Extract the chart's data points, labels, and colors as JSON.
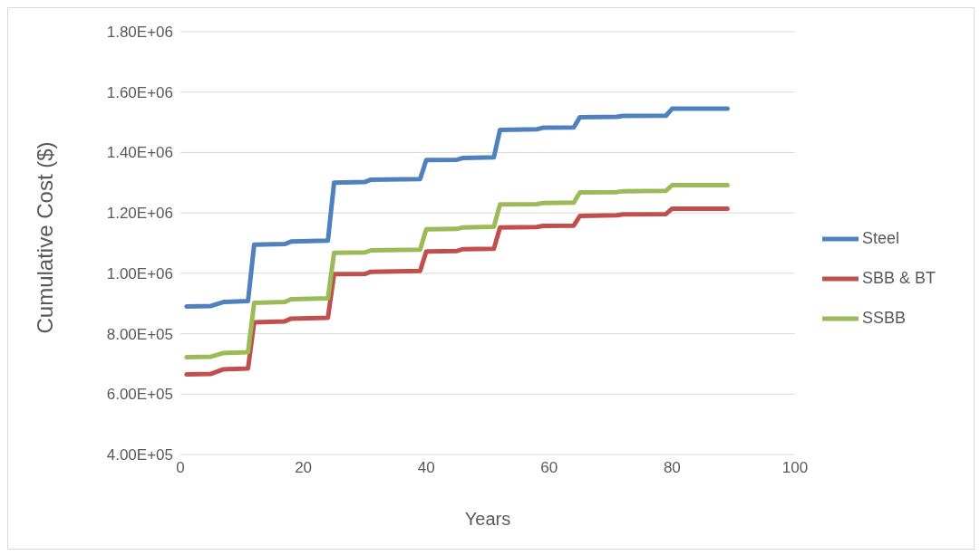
{
  "chart_data": {
    "type": "line",
    "xlabel": "Years",
    "ylabel": "Cumulative Cost ($)",
    "x": [
      1,
      5,
      7,
      11,
      12,
      17,
      18,
      24,
      25,
      30,
      31,
      39,
      40,
      45,
      46,
      51,
      52,
      58,
      59,
      64,
      65,
      71,
      72,
      79,
      80,
      89
    ],
    "series": [
      {
        "name": "Steel",
        "color": "#4f81bd",
        "values": [
          890000,
          892000,
          905000,
          908000,
          1095000,
          1097000,
          1105000,
          1108000,
          1300000,
          1302000,
          1310000,
          1312000,
          1375000,
          1376000,
          1382000,
          1384000,
          1475000,
          1477000,
          1482000,
          1483000,
          1517000,
          1518000,
          1521000,
          1522000,
          1545000,
          1545000
        ]
      },
      {
        "name": "SBB & BT",
        "color": "#c0504d",
        "values": [
          665000,
          667000,
          682000,
          685000,
          838000,
          841000,
          850000,
          853000,
          997000,
          998000,
          1005000,
          1008000,
          1072000,
          1074000,
          1080000,
          1081000,
          1152000,
          1153000,
          1157000,
          1158000,
          1190000,
          1192000,
          1195000,
          1196000,
          1214000,
          1214000
        ]
      },
      {
        "name": "SSBB",
        "color": "#9bbb59",
        "values": [
          722000,
          724000,
          736000,
          739000,
          902000,
          905000,
          914000,
          917000,
          1068000,
          1069000,
          1076000,
          1078000,
          1146000,
          1147000,
          1152000,
          1154000,
          1228000,
          1229000,
          1233000,
          1234000,
          1268000,
          1269000,
          1272000,
          1273000,
          1292000,
          1292000
        ]
      }
    ],
    "xlim": [
      0,
      100
    ],
    "xticks": [
      0,
      20,
      40,
      60,
      80,
      100
    ],
    "ylim": [
      400000,
      1800000
    ],
    "yticks": [
      {
        "value": 400000,
        "label": "4.00E+05"
      },
      {
        "value": 600000,
        "label": "6.00E+05"
      },
      {
        "value": 800000,
        "label": "8.00E+05"
      },
      {
        "value": 1000000,
        "label": "1.00E+06"
      },
      {
        "value": 1200000,
        "label": "1.20E+06"
      },
      {
        "value": 1400000,
        "label": "1.40E+06"
      },
      {
        "value": 1600000,
        "label": "1.60E+06"
      },
      {
        "value": 1800000,
        "label": "1.80E+06"
      }
    ],
    "grid": "y",
    "legend": "right",
    "marker": "none",
    "line_style": "solid"
  }
}
